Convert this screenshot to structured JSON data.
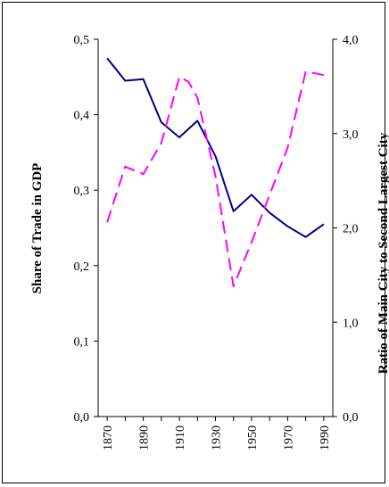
{
  "chart_data": {
    "type": "line",
    "title": "",
    "x": [
      1870,
      1880,
      1890,
      1900,
      1910,
      1920,
      1930,
      1940,
      1950,
      1960,
      1970,
      1980,
      1990
    ],
    "xlim": [
      1865,
      1995
    ],
    "x_ticks": [
      1870,
      1890,
      1910,
      1930,
      1950,
      1970,
      1990
    ],
    "x_tick_labels": [
      "1870",
      "1890",
      "1910",
      "1930",
      "1950",
      "1970",
      "1990"
    ],
    "xlabel": "",
    "y_left": {
      "label": "Share of Trade in GDP",
      "lim": [
        0,
        0.5
      ],
      "ticks": [
        0,
        0.1,
        0.2,
        0.3,
        0.4,
        0.5
      ],
      "tick_labels": [
        "0,0",
        "0,1",
        "0,2",
        "0,3",
        "0,4",
        "0,5"
      ]
    },
    "y_right": {
      "label": "Ratio of Main City to Second Largest City",
      "lim": [
        0,
        4
      ],
      "ticks": [
        0,
        1,
        2,
        3,
        4
      ],
      "tick_labels": [
        "0,0",
        "1,0",
        "2,0",
        "3,0",
        "4,0"
      ]
    },
    "series": [
      {
        "axis": "left",
        "color": "#000080",
        "style": "solid",
        "x": [
          1870,
          1880,
          1890,
          1900,
          1910,
          1920,
          1930,
          1940,
          1950,
          1960,
          1970,
          1980,
          1990
        ],
        "values": [
          0.475,
          0.445,
          0.447,
          0.39,
          0.37,
          0.392,
          0.345,
          0.272,
          0.294,
          0.27,
          0.252,
          0.238,
          0.255
        ]
      },
      {
        "axis": "right",
        "color": "#ff00ff",
        "style": "dashed",
        "x": [
          1870,
          1880,
          1890,
          1900,
          1910,
          1915,
          1920,
          1930,
          1940,
          1950,
          1960,
          1970,
          1980,
          1990
        ],
        "values": [
          2.06,
          2.65,
          2.57,
          2.9,
          3.6,
          3.55,
          3.38,
          2.55,
          1.38,
          1.85,
          2.35,
          2.85,
          3.66,
          3.62
        ]
      }
    ],
    "grid": false,
    "legend": "none"
  }
}
